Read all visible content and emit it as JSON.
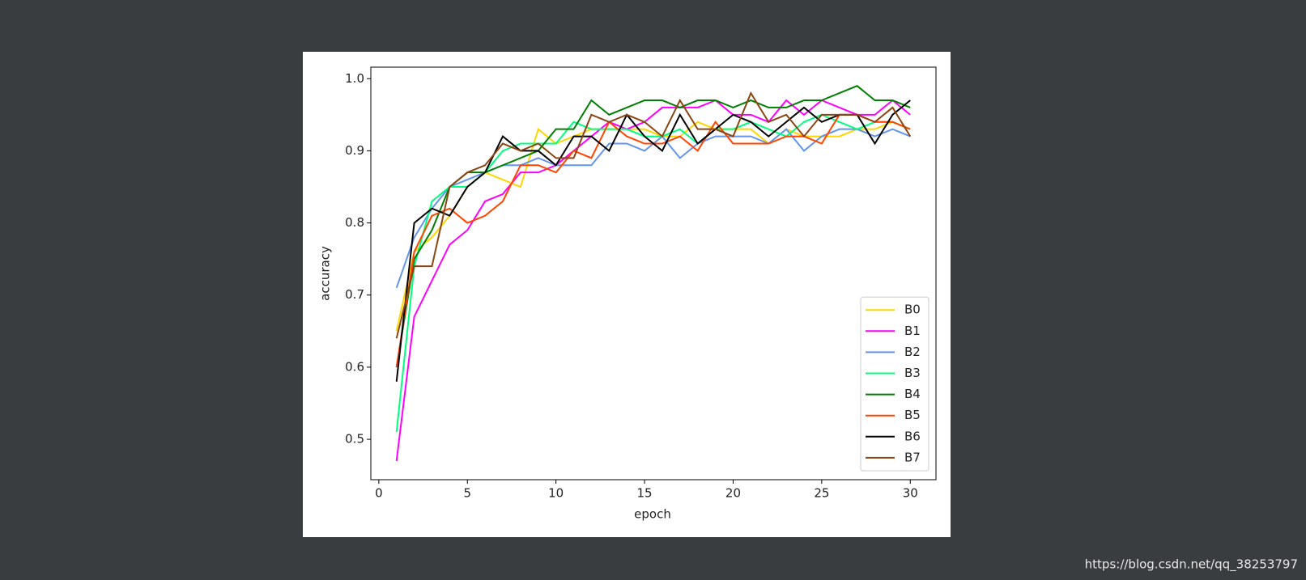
{
  "chart_data": {
    "type": "line",
    "xlabel": "epoch",
    "ylabel": "accuracy",
    "x": [
      1,
      2,
      3,
      4,
      5,
      6,
      7,
      8,
      9,
      10,
      11,
      12,
      13,
      14,
      15,
      16,
      17,
      18,
      19,
      20,
      21,
      22,
      23,
      24,
      25,
      26,
      27,
      28,
      29,
      30
    ],
    "xlim": [
      -0.45,
      31.45
    ],
    "xticks": [
      0,
      5,
      10,
      15,
      20,
      25,
      30
    ],
    "ylim": [
      0.444,
      1.016
    ],
    "yticks": [
      0.5,
      0.6,
      0.7,
      0.8,
      0.9,
      {
        "value": 1,
        "label": "1.0"
      }
    ],
    "legend": "lower right",
    "series": [
      {
        "name": "B0",
        "color": "#ffd700",
        "values": [
          0.65,
          0.76,
          0.78,
          0.81,
          0.85,
          0.87,
          0.86,
          0.85,
          0.93,
          0.91,
          0.92,
          0.93,
          0.93,
          0.93,
          0.93,
          0.92,
          0.92,
          0.94,
          0.93,
          0.93,
          0.93,
          0.91,
          0.93,
          0.92,
          0.92,
          0.92,
          0.93,
          0.93,
          0.94,
          0.93
        ]
      },
      {
        "name": "B1",
        "color": "#ff00ff",
        "values": [
          0.47,
          0.67,
          0.72,
          0.77,
          0.79,
          0.83,
          0.84,
          0.87,
          0.87,
          0.88,
          0.9,
          0.92,
          0.94,
          0.93,
          0.94,
          0.96,
          0.96,
          0.96,
          0.97,
          0.95,
          0.95,
          0.94,
          0.97,
          0.95,
          0.97,
          0.96,
          0.95,
          0.95,
          0.97,
          0.95
        ]
      },
      {
        "name": "B2",
        "color": "#6495ed",
        "values": [
          0.71,
          0.78,
          0.82,
          0.85,
          0.86,
          0.87,
          0.88,
          0.88,
          0.89,
          0.88,
          0.88,
          0.88,
          0.91,
          0.91,
          0.9,
          0.92,
          0.89,
          0.91,
          0.92,
          0.92,
          0.92,
          0.91,
          0.93,
          0.9,
          0.92,
          0.93,
          0.93,
          0.92,
          0.93,
          0.92
        ]
      },
      {
        "name": "B3",
        "color": "#00ff7f",
        "values": [
          0.51,
          0.74,
          0.83,
          0.85,
          0.85,
          0.87,
          0.9,
          0.91,
          0.91,
          0.91,
          0.94,
          0.93,
          0.93,
          0.93,
          0.92,
          0.92,
          0.93,
          0.91,
          0.93,
          0.93,
          0.94,
          0.93,
          0.92,
          0.94,
          0.95,
          0.94,
          0.93,
          0.94,
          0.94,
          0.93
        ]
      },
      {
        "name": "B4",
        "color": "#008000",
        "values": [
          0.6,
          0.75,
          0.79,
          0.85,
          0.87,
          0.87,
          0.88,
          0.89,
          0.9,
          0.93,
          0.93,
          0.97,
          0.95,
          0.96,
          0.97,
          0.97,
          0.96,
          0.97,
          0.97,
          0.96,
          0.97,
          0.96,
          0.96,
          0.97,
          0.97,
          0.98,
          0.99,
          0.97,
          0.97,
          0.96
        ]
      },
      {
        "name": "B5",
        "color": "#ff4500",
        "values": [
          0.6,
          0.76,
          0.81,
          0.82,
          0.8,
          0.81,
          0.83,
          0.88,
          0.88,
          0.87,
          0.9,
          0.89,
          0.94,
          0.92,
          0.91,
          0.91,
          0.92,
          0.9,
          0.94,
          0.91,
          0.91,
          0.91,
          0.92,
          0.92,
          0.91,
          0.95,
          0.95,
          0.94,
          0.94,
          0.93
        ]
      },
      {
        "name": "B6",
        "color": "#000000",
        "values": [
          0.58,
          0.8,
          0.82,
          0.81,
          0.85,
          0.87,
          0.92,
          0.9,
          0.9,
          0.88,
          0.92,
          0.92,
          0.9,
          0.95,
          0.92,
          0.9,
          0.95,
          0.91,
          0.93,
          0.95,
          0.94,
          0.92,
          0.94,
          0.96,
          0.94,
          0.95,
          0.95,
          0.91,
          0.95,
          0.97
        ]
      },
      {
        "name": "B7",
        "color": "#8b4513",
        "values": [
          0.64,
          0.74,
          0.74,
          0.85,
          0.87,
          0.88,
          0.91,
          0.9,
          0.91,
          0.89,
          0.89,
          0.95,
          0.94,
          0.95,
          0.94,
          0.92,
          0.97,
          0.93,
          0.93,
          0.92,
          0.98,
          0.94,
          0.95,
          0.92,
          0.95,
          0.95,
          0.95,
          0.94,
          0.96,
          0.92
        ]
      }
    ]
  },
  "watermark": "https://blog.csdn.net/qq_38253797"
}
